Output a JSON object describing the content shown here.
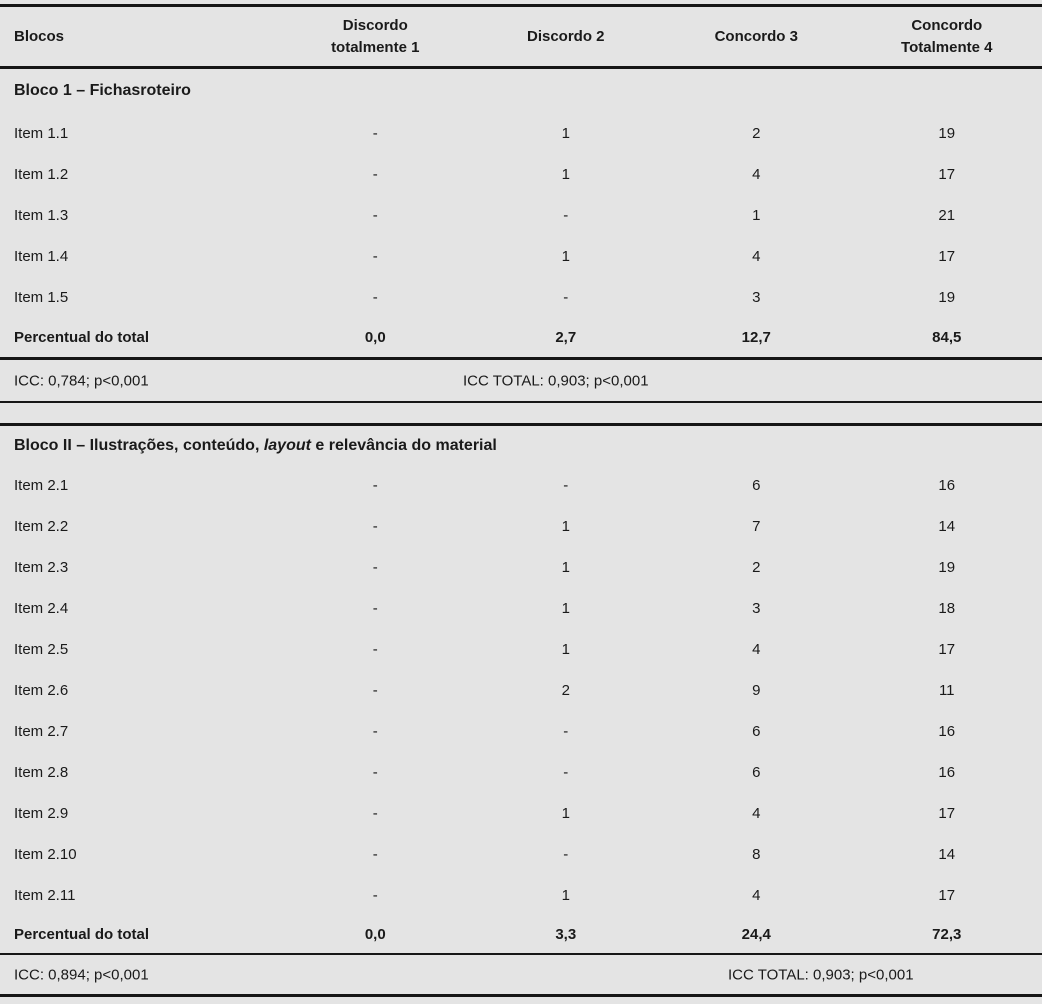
{
  "page": {
    "background_color": "#e4e4e4",
    "text_color": "#1a1a1a",
    "rule_color": "#161616"
  },
  "table": {
    "header": {
      "col0": "Blocos",
      "col1": "Discordo\ntotalmente 1",
      "col2": "Discordo 2",
      "col3": "Concordo 3",
      "col4": "Concordo\nTotalmente 4"
    },
    "sections": [
      {
        "title": "Bloco 1 – Fichasroteiro",
        "rows": [
          {
            "label": "Item 1.1",
            "values": [
              "-",
              "1",
              "2",
              "19"
            ]
          },
          {
            "label": "Item 1.2",
            "values": [
              "-",
              "1",
              "4",
              "17"
            ]
          },
          {
            "label": "Item 1.3",
            "values": [
              "-",
              "-",
              "1",
              "21"
            ]
          },
          {
            "label": "Item 1.4",
            "values": [
              "-",
              "1",
              "4",
              "17"
            ]
          },
          {
            "label": "Item 1.5",
            "values": [
              "-",
              "-",
              "3",
              "19"
            ]
          }
        ],
        "total": {
          "label": "Percentual do total",
          "values": [
            "0,0",
            "2,7",
            "12,7",
            "84,5"
          ]
        },
        "icc": "ICC: 0,784; p<0,001",
        "icc_total": "ICC TOTAL: 0,903; p<0,001"
      },
      {
        "title_prefix": "Bloco II – Ilustrações, conteúdo, ",
        "title_italic": "layout",
        "title_suffix": " e relevância do material",
        "rows": [
          {
            "label": "Item 2.1",
            "values": [
              "-",
              "-",
              "6",
              "16"
            ]
          },
          {
            "label": "Item 2.2",
            "values": [
              "-",
              "1",
              "7",
              "14"
            ]
          },
          {
            "label": "Item 2.3",
            "values": [
              "-",
              "1",
              "2",
              "19"
            ]
          },
          {
            "label": "Item 2.4",
            "values": [
              "-",
              "1",
              "3",
              "18"
            ]
          },
          {
            "label": "Item 2.5",
            "values": [
              "-",
              "1",
              "4",
              "17"
            ]
          },
          {
            "label": "Item 2.6",
            "values": [
              "-",
              "2",
              "9",
              "11"
            ]
          },
          {
            "label": "Item 2.7",
            "values": [
              "-",
              "-",
              "6",
              "16"
            ]
          },
          {
            "label": "Item 2.8",
            "values": [
              "-",
              "-",
              "6",
              "16"
            ]
          },
          {
            "label": "Item 2.9",
            "values": [
              "-",
              "1",
              "4",
              "17"
            ]
          },
          {
            "label": "Item 2.10",
            "values": [
              "-",
              "-",
              "8",
              "14"
            ]
          },
          {
            "label": "Item 2.11",
            "values": [
              "-",
              "1",
              "4",
              "17"
            ]
          }
        ],
        "total": {
          "label": "Percentual do total",
          "values": [
            "0,0",
            "3,3",
            "24,4",
            "72,3"
          ]
        },
        "icc": "ICC: 0,894; p<0,001",
        "icc_total": "ICC TOTAL: 0,903; p<0,001"
      }
    ]
  }
}
